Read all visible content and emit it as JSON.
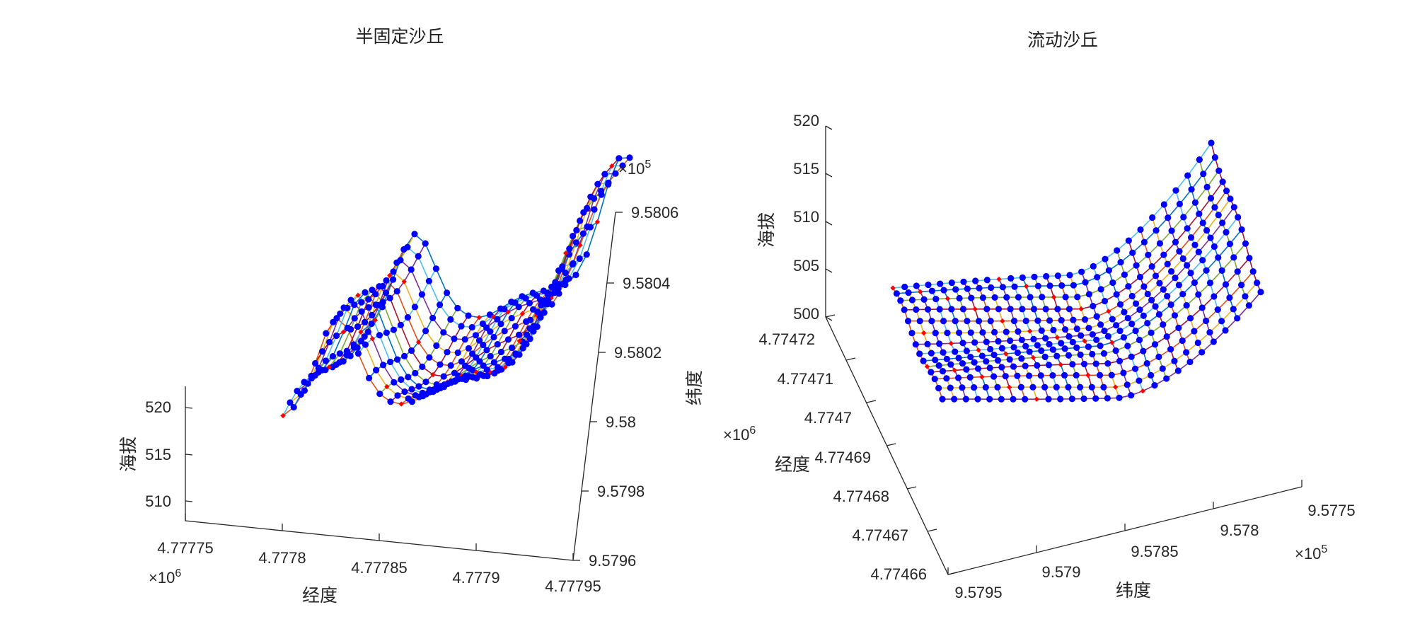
{
  "chart_data": [
    {
      "type": "surface3d",
      "title": "半固定沙丘",
      "xlabel": "经度",
      "ylabel": "纬度",
      "zlabel": "海拔",
      "x_ticks": [
        "4.77775",
        "4.7778",
        "4.77785",
        "4.7779",
        "4.77795"
      ],
      "x_exponent_label": "×10",
      "x_exponent_power": "6",
      "x_range": [
        4777750,
        4777950
      ],
      "y_ticks": [
        "9.5796",
        "9.5798",
        "9.58",
        "9.5802",
        "9.5804",
        "9.5806"
      ],
      "y_exponent_label": "×10",
      "y_exponent_power": "5",
      "y_range": [
        957960,
        958060
      ],
      "z_ticks": [
        "510",
        "515",
        "520"
      ],
      "z_range": [
        508,
        522
      ],
      "grid": false,
      "mesh_colors": [
        "#d95319",
        "#edb120",
        "#7e2f8e",
        "#4dbeee",
        "#0072bd",
        "#77ac30",
        "#a2142f"
      ],
      "marker_color": "#0000ff",
      "highlight_marker_color": "#ff0000",
      "surface_summary": {
        "min_elevation": 508,
        "max_elevation": 521,
        "shape": "two dune ridges separated by a trough, rising toward the north-east"
      }
    },
    {
      "type": "surface3d",
      "title": "流动沙丘",
      "xlabel": "纬度",
      "ylabel": "经度",
      "zlabel": "海拔",
      "x_ticks": [
        "9.5795",
        "9.579",
        "9.5785",
        "9.578",
        "9.5775"
      ],
      "x_exponent_label": "×10",
      "x_exponent_power": "5",
      "x_range": [
        957950,
        957750
      ],
      "y_ticks": [
        "4.77466",
        "4.77467",
        "4.77468",
        "4.77469",
        "4.7747",
        "4.77471",
        "4.77472"
      ],
      "y_exponent_label": "×10",
      "y_exponent_power": "6",
      "y_range": [
        4774660,
        4774720
      ],
      "z_ticks": [
        "500",
        "505",
        "510",
        "515",
        "520"
      ],
      "z_range": [
        500,
        520
      ],
      "grid": false,
      "mesh_colors": [
        "#d95319",
        "#edb120",
        "#7e2f8e",
        "#4dbeee",
        "#0072bd",
        "#77ac30",
        "#a2142f"
      ],
      "marker_color": "#0000ff",
      "highlight_marker_color": "#ff0000",
      "surface_summary": {
        "min_elevation": 500,
        "max_elevation": 520,
        "shape": "flat interdune floor rising sharply to a dune crest on one side"
      }
    }
  ]
}
